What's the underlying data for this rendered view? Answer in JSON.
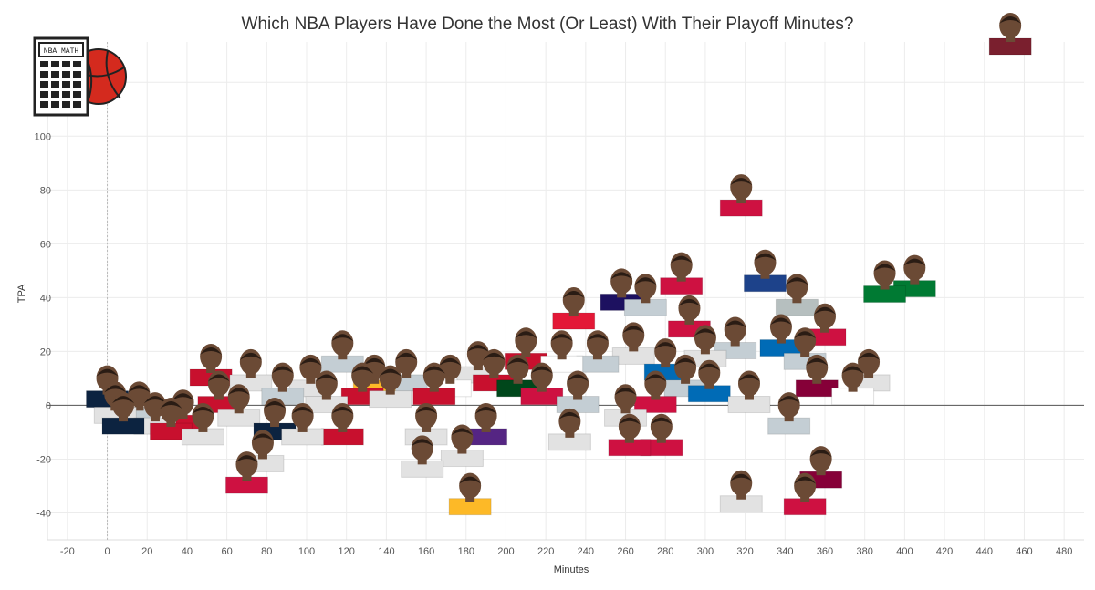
{
  "chart_data": {
    "type": "scatter",
    "title": "Which NBA Players Have Done the Most (Or Least) With Their Playoff Minutes?",
    "xlabel": "Minutes",
    "ylabel": "TPA",
    "xlim": [
      -30,
      490
    ],
    "ylim": [
      -50,
      135
    ],
    "xticks": [
      -20,
      0,
      20,
      40,
      60,
      80,
      100,
      120,
      140,
      160,
      180,
      200,
      220,
      240,
      260,
      280,
      300,
      320,
      340,
      360,
      380,
      400,
      420,
      440,
      460,
      480
    ],
    "yticks": [
      -40,
      -20,
      0,
      20,
      40,
      60,
      80,
      100,
      120
    ],
    "grid": true,
    "zero_line": true,
    "marker": "player-headshot",
    "points": [
      {
        "x": 453,
        "y": 135,
        "jersey": "#7a1f2e"
      },
      {
        "x": 318,
        "y": 75,
        "jersey": "#ce1141"
      },
      {
        "x": 330,
        "y": 47,
        "jersey": "#1d428a"
      },
      {
        "x": 390,
        "y": 43,
        "jersey": "#007a33"
      },
      {
        "x": 405,
        "y": 45,
        "jersey": "#007a33"
      },
      {
        "x": 288,
        "y": 46,
        "jersey": "#ce1141"
      },
      {
        "x": 292,
        "y": 30,
        "jersey": "#ce1141"
      },
      {
        "x": 270,
        "y": 38,
        "jersey": "#c4ced4"
      },
      {
        "x": 258,
        "y": 40,
        "jersey": "#1d1160"
      },
      {
        "x": 234,
        "y": 33,
        "jersey": "#e31837"
      },
      {
        "x": 346,
        "y": 38,
        "jersey": "#b6bfbf"
      },
      {
        "x": 360,
        "y": 27,
        "jersey": "#ce1141"
      },
      {
        "x": 338,
        "y": 23,
        "jersey": "#006bb6"
      },
      {
        "x": 350,
        "y": 18,
        "jersey": "#c4ced4"
      },
      {
        "x": 315,
        "y": 22,
        "jersey": "#c4ced4"
      },
      {
        "x": 300,
        "y": 19,
        "jersey": "#e2e2e2"
      },
      {
        "x": 280,
        "y": 14,
        "jersey": "#006bb6"
      },
      {
        "x": 264,
        "y": 20,
        "jersey": "#e2e2e2"
      },
      {
        "x": 246,
        "y": 17,
        "jersey": "#c4ced4"
      },
      {
        "x": 228,
        "y": 17,
        "jersey": "#ffffff"
      },
      {
        "x": 210,
        "y": 18,
        "jersey": "#c8102e"
      },
      {
        "x": 382,
        "y": 10,
        "jersey": "#e2e2e2"
      },
      {
        "x": 374,
        "y": 5,
        "jersey": "#ffffff"
      },
      {
        "x": 356,
        "y": 8,
        "jersey": "#860038"
      },
      {
        "x": 342,
        "y": -6,
        "jersey": "#c4ced4"
      },
      {
        "x": 358,
        "y": -26,
        "jersey": "#860038"
      },
      {
        "x": 350,
        "y": -36,
        "jersey": "#ce1141"
      },
      {
        "x": 318,
        "y": -35,
        "jersey": "#e2e2e2"
      },
      {
        "x": 322,
        "y": 2,
        "jersey": "#e2e2e2"
      },
      {
        "x": 302,
        "y": 6,
        "jersey": "#006bb6"
      },
      {
        "x": 290,
        "y": 8,
        "jersey": "#c4ced4"
      },
      {
        "x": 275,
        "y": 2,
        "jersey": "#ce1141"
      },
      {
        "x": 278,
        "y": -14,
        "jersey": "#ce1141"
      },
      {
        "x": 260,
        "y": -3,
        "jersey": "#e2e2e2"
      },
      {
        "x": 262,
        "y": -14,
        "jersey": "#ce1141"
      },
      {
        "x": 236,
        "y": 2,
        "jersey": "#c4ced4"
      },
      {
        "x": 232,
        "y": -12,
        "jersey": "#e2e2e2"
      },
      {
        "x": 218,
        "y": 5,
        "jersey": "#ce1141"
      },
      {
        "x": 206,
        "y": 8,
        "jersey": "#00471b"
      },
      {
        "x": 194,
        "y": 10,
        "jersey": "#c8102e"
      },
      {
        "x": 186,
        "y": 13,
        "jersey": "#e2e2e2"
      },
      {
        "x": 190,
        "y": -10,
        "jersey": "#552583"
      },
      {
        "x": 178,
        "y": -18,
        "jersey": "#e2e2e2"
      },
      {
        "x": 182,
        "y": -36,
        "jersey": "#fdb927"
      },
      {
        "x": 172,
        "y": 8,
        "jersey": "#ffffff"
      },
      {
        "x": 164,
        "y": 5,
        "jersey": "#c8102e"
      },
      {
        "x": 160,
        "y": -10,
        "jersey": "#e2e2e2"
      },
      {
        "x": 158,
        "y": -22,
        "jersey": "#e2e2e2"
      },
      {
        "x": 150,
        "y": 10,
        "jersey": "#c4ced4"
      },
      {
        "x": 142,
        "y": 4,
        "jersey": "#e2e2e2"
      },
      {
        "x": 134,
        "y": 8,
        "jersey": "#fdb927"
      },
      {
        "x": 128,
        "y": 5,
        "jersey": "#c8102e"
      },
      {
        "x": 118,
        "y": 17,
        "jersey": "#c4ced4"
      },
      {
        "x": 110,
        "y": 2,
        "jersey": "#e2e2e2"
      },
      {
        "x": 118,
        "y": -10,
        "jersey": "#c8102e"
      },
      {
        "x": 102,
        "y": 8,
        "jersey": "#e2e2e2"
      },
      {
        "x": 98,
        "y": -10,
        "jersey": "#e2e2e2"
      },
      {
        "x": 88,
        "y": 5,
        "jersey": "#c4ced4"
      },
      {
        "x": 84,
        "y": -8,
        "jersey": "#0c2340"
      },
      {
        "x": 78,
        "y": -20,
        "jersey": "#e2e2e2"
      },
      {
        "x": 72,
        "y": 10,
        "jersey": "#e2e2e2"
      },
      {
        "x": 66,
        "y": -3,
        "jersey": "#e2e2e2"
      },
      {
        "x": 70,
        "y": -28,
        "jersey": "#ce1141"
      },
      {
        "x": 56,
        "y": 2,
        "jersey": "#c8102e"
      },
      {
        "x": 52,
        "y": 12,
        "jersey": "#c8102e"
      },
      {
        "x": 48,
        "y": -10,
        "jersey": "#e2e2e2"
      },
      {
        "x": 38,
        "y": -5,
        "jersey": "#c8102e"
      },
      {
        "x": 32,
        "y": -8,
        "jersey": "#c8102e"
      },
      {
        "x": 24,
        "y": -6,
        "jersey": "#e2e2e2"
      },
      {
        "x": 16,
        "y": -2,
        "jersey": "#c4ced4"
      },
      {
        "x": 8,
        "y": -6,
        "jersey": "#0c2340"
      },
      {
        "x": 4,
        "y": -2,
        "jersey": "#e2e2e2"
      },
      {
        "x": 0,
        "y": 4,
        "jersey": "#0c2340"
      }
    ]
  },
  "colors": {
    "grid": "#ececec",
    "zero_line": "#555555",
    "skin": "#6b4a35",
    "logo_ball": "#d42a1e",
    "logo_frame": "#222222"
  },
  "logo": {
    "screen_text": "NBA MATH",
    "icon": "calculator-basketball-icon"
  }
}
